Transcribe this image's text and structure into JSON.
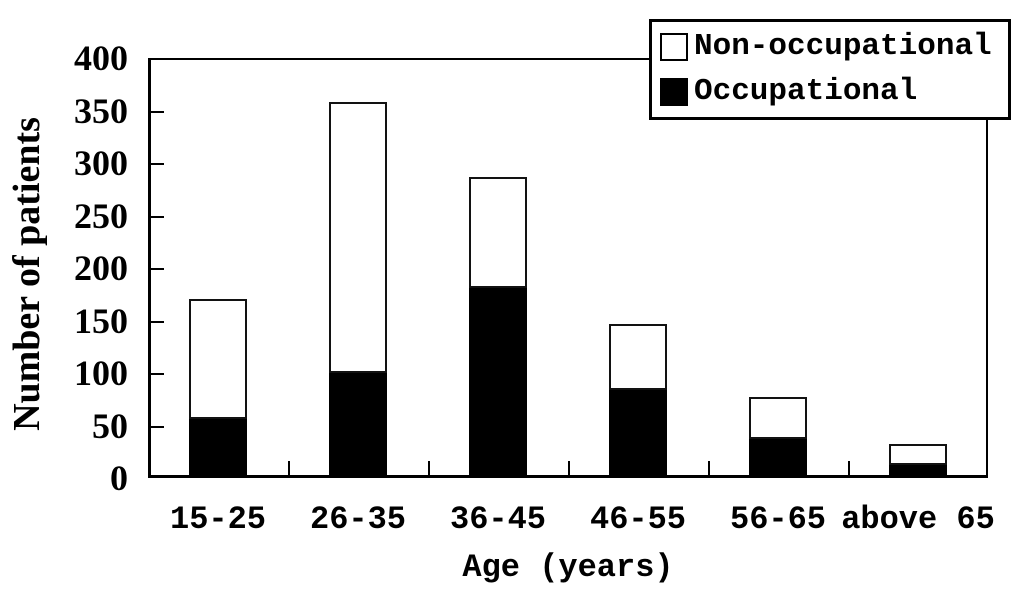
{
  "chart_data": {
    "type": "bar",
    "stacked": true,
    "title": "",
    "xlabel": "Age (years)",
    "ylabel": "Number of patients",
    "categories": [
      "15-25",
      "26-35",
      "36-45",
      "46-55",
      "56-65",
      "above 65"
    ],
    "series": [
      {
        "name": "Occupational",
        "color": "#000000",
        "values": [
          53,
          97,
          178,
          81,
          34,
          10
        ]
      },
      {
        "name": "Non-occupational",
        "color": "#ffffff",
        "values": [
          115,
          258,
          106,
          63,
          40,
          20
        ]
      }
    ],
    "stack_order_bottom_to_top": [
      "Occupational",
      "Non-occupational"
    ],
    "totals": [
      168,
      355,
      284,
      144,
      74,
      30
    ],
    "ylim": [
      0,
      400
    ],
    "ytick_step": 50,
    "yticks": [
      0,
      50,
      100,
      150,
      200,
      250,
      300,
      350,
      400
    ],
    "grid": false,
    "legend": {
      "position": "top-right",
      "bordered": true,
      "entries": [
        "Non-occupational",
        "Occupational"
      ]
    }
  },
  "colors": {
    "foreground": "#000000",
    "background": "#ffffff",
    "occupational_fill": "#000000",
    "non_occupational_fill": "#ffffff"
  }
}
